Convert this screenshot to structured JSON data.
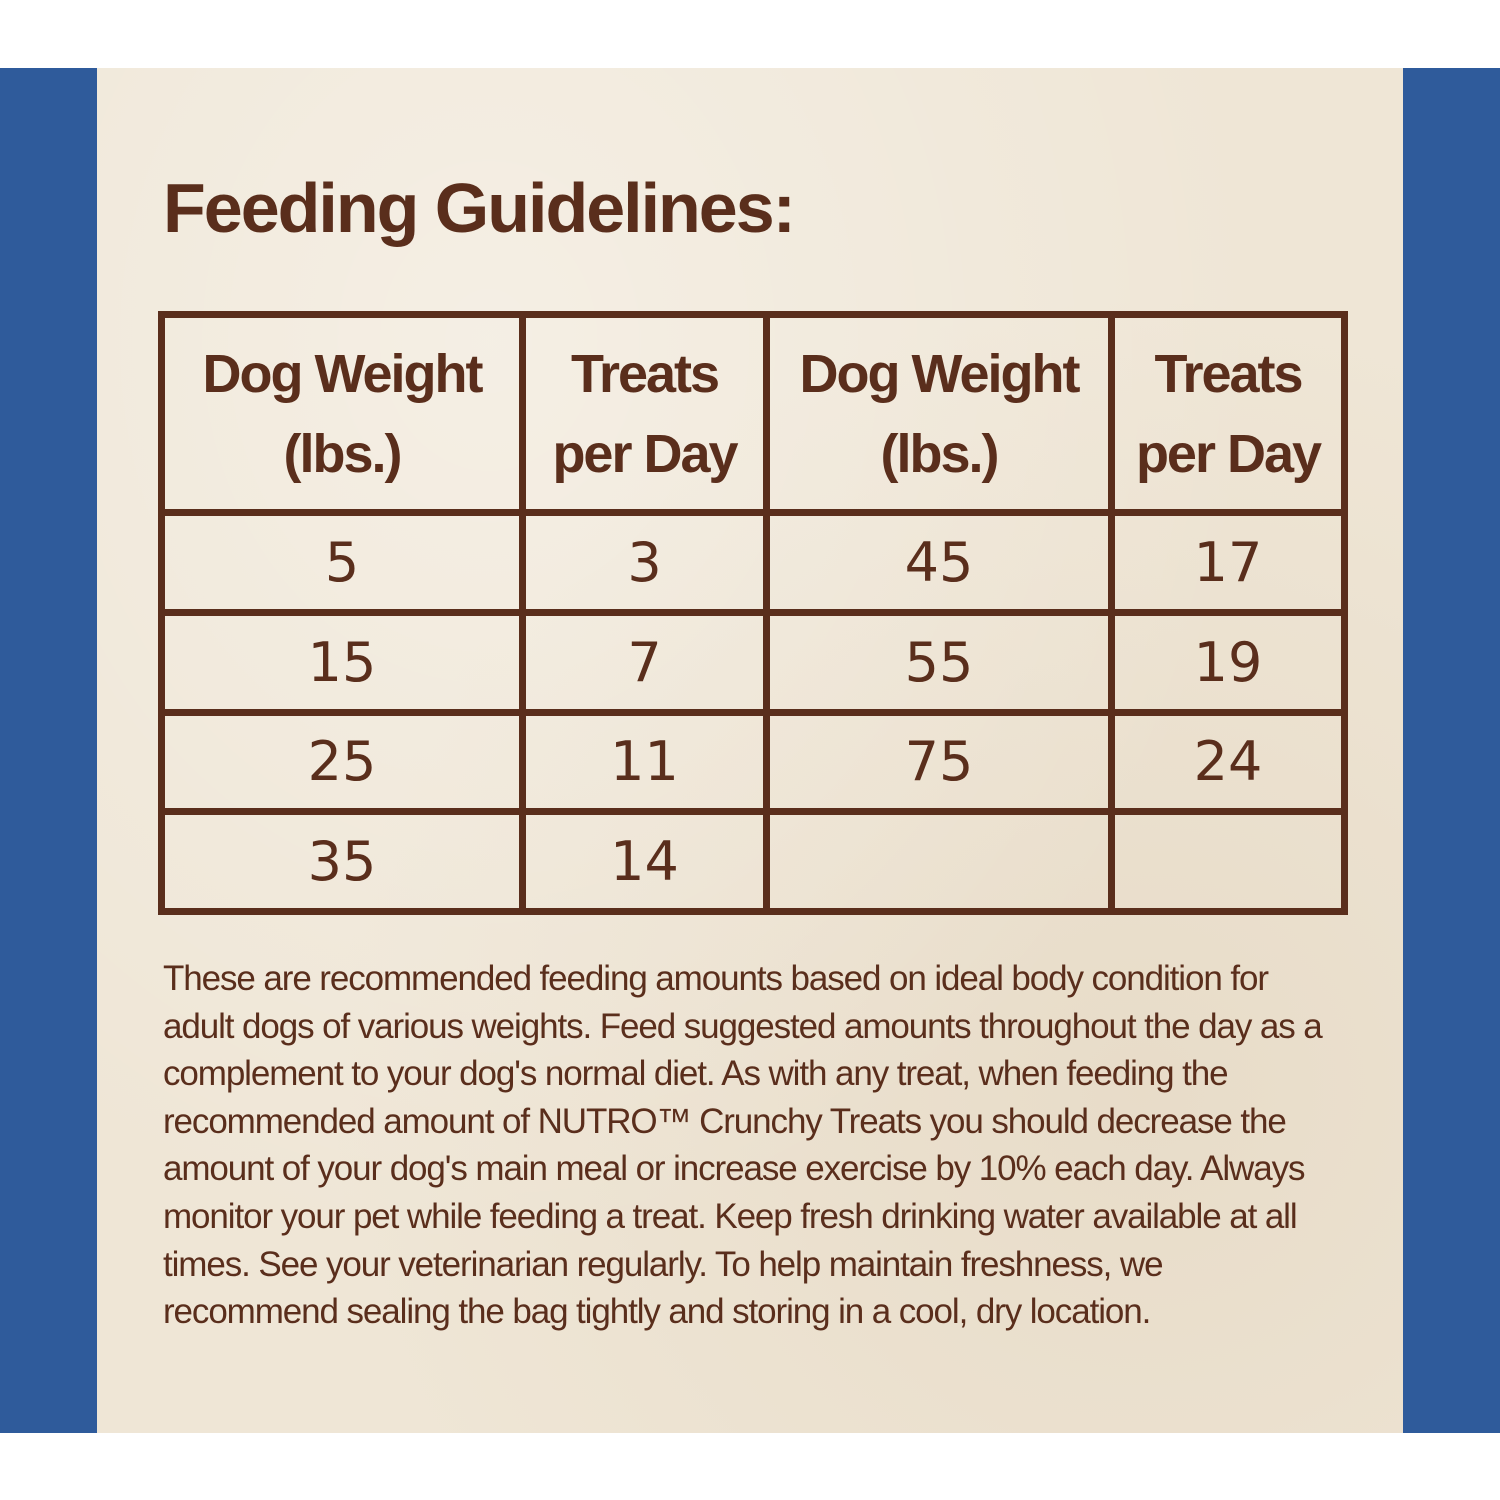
{
  "title": "Feeding Guidelines:",
  "table": {
    "headers": [
      {
        "line1": "Dog Weight",
        "line2": "(lbs.)"
      },
      {
        "line1": "Treats",
        "line2": "per Day"
      },
      {
        "line1": "Dog Weight",
        "line2": "(lbs.)"
      },
      {
        "line1": "Treats",
        "line2": "per Day"
      }
    ],
    "rows": [
      [
        "5",
        "3",
        "45",
        "17"
      ],
      [
        "15",
        "7",
        "55",
        "19"
      ],
      [
        "25",
        "11",
        "75",
        "24"
      ],
      [
        "35",
        "14",
        "",
        ""
      ]
    ]
  },
  "note": "These are recommended feeding amounts based on ideal body condition for adult dogs of various weights. Feed suggested amounts throughout the day as a complement to your dog's normal diet. As with any treat, when feeding the recommended amount of NUTRO™ Crunchy Treats you should decrease the amount of your dog's main meal or increase exercise by 10% each day. Always monitor your pet while feeding a treat. Keep fresh drinking water available at all times. See your veterinarian regularly. To help maintain freshness, we recommend sealing the bag tightly and storing in a cool, dry location.",
  "colors": {
    "frame": "#2f5b9b",
    "panel": "#efe6d6",
    "ink": "#5a2e1c"
  }
}
